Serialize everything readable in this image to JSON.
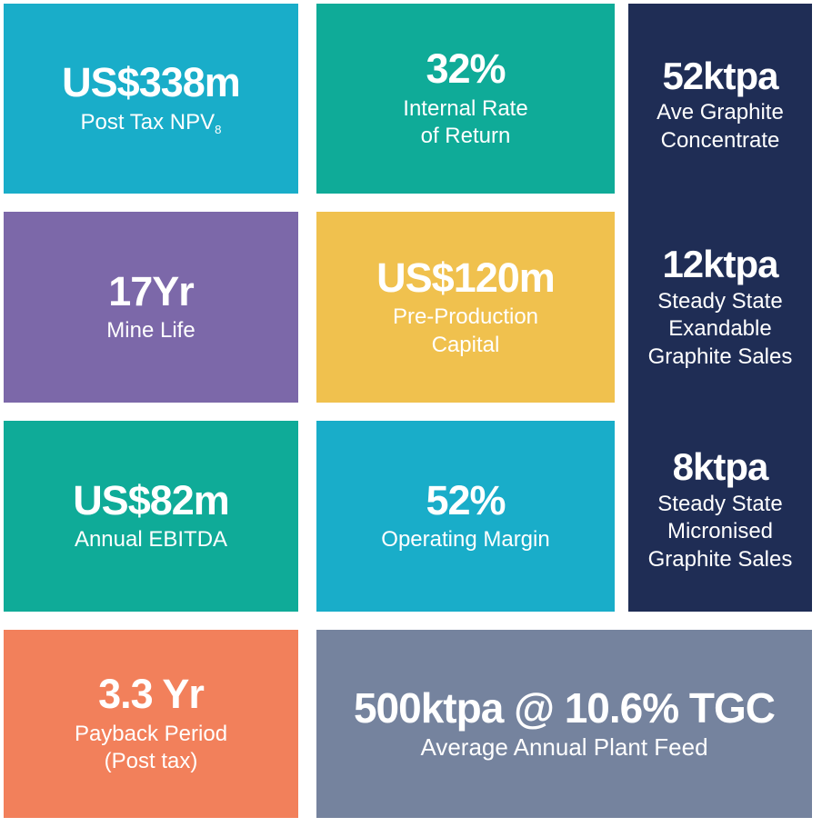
{
  "colors": {
    "cyan": "#19ADC9",
    "teal": "#0FAB98",
    "navy": "#1F2D55",
    "purple": "#7C68A9",
    "yellow": "#F0C14E",
    "orange": "#F2805B",
    "slate": "#75839E",
    "text": "#FFFFFF",
    "background": "#FFFFFF"
  },
  "tiles": {
    "npv": {
      "value": "US$338m",
      "label_main": "Post Tax NPV",
      "label_sub": "8"
    },
    "irr": {
      "value": "32%",
      "label": "Internal Rate\nof Return"
    },
    "mine": {
      "value": "17Yr",
      "label": "Mine Life"
    },
    "capital": {
      "value": "US$120m",
      "label": "Pre-Production\nCapital"
    },
    "ebitda": {
      "value": "US$82m",
      "label": "Annual EBITDA"
    },
    "margin": {
      "value": "52%",
      "label": "Operating Margin"
    },
    "payback": {
      "value": "3.3 Yr",
      "label": "Payback Period\n(Post tax)"
    },
    "feed": {
      "value": "500ktpa @ 10.6% TGC",
      "label": "Average Annual Plant Feed"
    }
  },
  "production": [
    {
      "value": "52ktpa",
      "label": "Ave Graphite\nConcentrate"
    },
    {
      "value": "12ktpa",
      "label": "Steady State\nExandable\nGraphite Sales"
    },
    {
      "value": "8ktpa",
      "label": "Steady State\nMicronised\nGraphite Sales"
    }
  ]
}
